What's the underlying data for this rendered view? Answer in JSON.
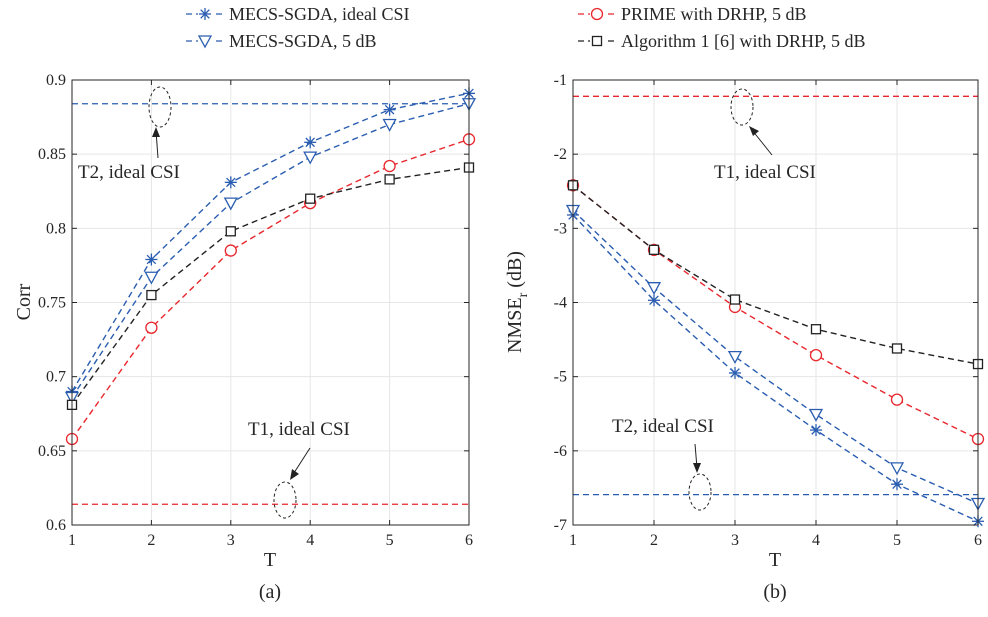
{
  "colors": {
    "blue": "#2a5db0",
    "red": "#e8262c",
    "black": "#222222"
  },
  "legend": {
    "items": [
      {
        "label": "MECS-SGDA, ideal CSI",
        "color": "#2a5db0",
        "marker": "star"
      },
      {
        "label": "MECS-SGDA, 5 dB",
        "color": "#2a5db0",
        "marker": "triangle-down"
      },
      {
        "label": "PRIME with DRHP, 5 dB",
        "color": "#e8262c",
        "marker": "circle"
      },
      {
        "label": "Algorithm 1 [6] with DRHP, 5 dB",
        "color": "#222222",
        "marker": "square"
      }
    ]
  },
  "chart_data": [
    {
      "type": "line",
      "caption": "(a)",
      "xlabel": "T",
      "ylabel": "Corr",
      "xlim": [
        1,
        6
      ],
      "ylim": [
        0.6,
        0.9
      ],
      "xticks": [
        "1",
        "2",
        "3",
        "4",
        "5",
        "6"
      ],
      "yticks": [
        "0.6",
        "0.65",
        "0.7",
        "0.75",
        "0.8",
        "0.85",
        "0.9"
      ],
      "grid": true,
      "x": [
        1,
        2,
        3,
        4,
        5,
        6
      ],
      "series": [
        {
          "name": "MECS-SGDA, ideal CSI",
          "color": "#2a5db0",
          "marker": "star",
          "values": [
            0.69,
            0.779,
            0.831,
            0.858,
            0.88,
            0.891
          ]
        },
        {
          "name": "MECS-SGDA, 5 dB",
          "color": "#2a5db0",
          "marker": "triangle-down",
          "values": [
            0.686,
            0.767,
            0.817,
            0.848,
            0.87,
            0.884
          ]
        },
        {
          "name": "PRIME with DRHP, 5 dB",
          "color": "#e8262c",
          "marker": "circle",
          "values": [
            0.658,
            0.733,
            0.785,
            0.817,
            0.842,
            0.86
          ]
        },
        {
          "name": "Algorithm 1 [6] with DRHP, 5 dB",
          "color": "#222222",
          "marker": "square",
          "values": [
            0.681,
            0.755,
            0.798,
            0.82,
            0.833,
            0.841
          ]
        }
      ],
      "reference_lines": [
        {
          "value": 0.884,
          "color": "#2a5db0"
        },
        {
          "value": 0.614,
          "color": "#e8262c"
        }
      ],
      "annotations": [
        {
          "text": "T2, ideal CSI",
          "at_x": 1.6,
          "at_y": 0.884
        },
        {
          "text": "T1, ideal CSI",
          "at_x": 3.6,
          "at_y": 0.614
        }
      ]
    },
    {
      "type": "line",
      "caption": "(b)",
      "xlabel": "T",
      "ylabel": "NMSE",
      "ylabel_sub": "r",
      "ylabel_unit": "(dB)",
      "xlim": [
        1,
        6
      ],
      "ylim": [
        -7,
        -1
      ],
      "xticks": [
        "1",
        "2",
        "3",
        "4",
        "5",
        "6"
      ],
      "yticks": [
        "-7",
        "-6",
        "-5",
        "-4",
        "-3",
        "-2",
        "-1"
      ],
      "grid": true,
      "x": [
        1,
        2,
        3,
        4,
        5,
        6
      ],
      "series": [
        {
          "name": "MECS-SGDA, ideal CSI",
          "color": "#2a5db0",
          "marker": "star",
          "values": [
            -2.82,
            -3.97,
            -4.95,
            -5.72,
            -6.45,
            -6.95
          ]
        },
        {
          "name": "MECS-SGDA, 5 dB",
          "color": "#2a5db0",
          "marker": "triangle-down",
          "values": [
            -2.76,
            -3.8,
            -4.73,
            -5.51,
            -6.23,
            -6.71
          ]
        },
        {
          "name": "PRIME with DRHP, 5 dB",
          "color": "#e8262c",
          "marker": "circle",
          "values": [
            -2.42,
            -3.29,
            -4.06,
            -4.71,
            -5.31,
            -5.84
          ]
        },
        {
          "name": "Algorithm 1 [6] with DRHP, 5 dB",
          "color": "#222222",
          "marker": "square",
          "values": [
            -2.42,
            -3.29,
            -3.96,
            -4.36,
            -4.62,
            -4.83
          ]
        }
      ],
      "reference_lines": [
        {
          "value": -1.22,
          "color": "#e8262c"
        },
        {
          "value": -6.59,
          "color": "#2a5db0"
        }
      ],
      "annotations": [
        {
          "text": "T1, ideal CSI",
          "at_x": 3.05,
          "at_y": -1.22
        },
        {
          "text": "T2, ideal CSI",
          "at_x": 2.55,
          "at_y": -6.59
        }
      ]
    }
  ]
}
